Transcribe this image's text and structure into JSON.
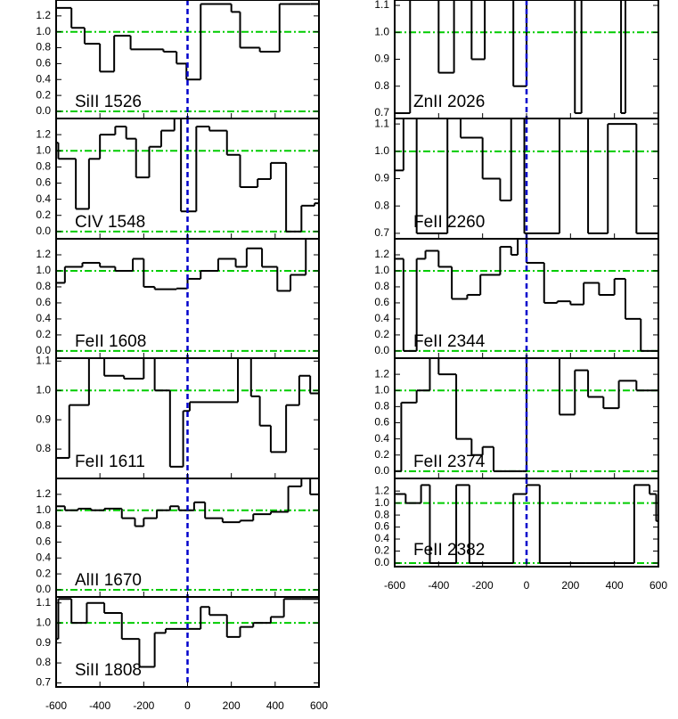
{
  "chart_data": [
    {
      "type": "step",
      "label": "SiII 1526",
      "ylim": [
        -0.09,
        1.4
      ],
      "yticks": [
        {
          "value": 0,
          "label": "0.0"
        },
        {
          "value": 0.2,
          "label": "0.2"
        },
        {
          "value": 0.4,
          "label": "0.4"
        },
        {
          "value": 0.6,
          "label": "0.6"
        },
        {
          "value": 0.8,
          "label": "0.8"
        },
        {
          "value": 1,
          "label": "1.0"
        },
        {
          "value": 1.2,
          "label": "1.2"
        }
      ],
      "x": [
        -600,
        -530,
        -470,
        -400,
        -335,
        -260,
        -110,
        -50,
        -5,
        60,
        200,
        240,
        330,
        420,
        560
      ],
      "values": [
        1.3,
        1.05,
        0.85,
        0.5,
        0.95,
        0.78,
        0.75,
        0.6,
        0.4,
        1.35,
        1.25,
        0.8,
        0.75,
        1.35,
        1.35
      ]
    },
    {
      "type": "step",
      "label": "CIV 1548",
      "ylim": [
        -0.09,
        1.4
      ],
      "yticks": [
        {
          "value": 0,
          "label": "0.0"
        },
        {
          "value": 0.2,
          "label": "0.2"
        },
        {
          "value": 0.4,
          "label": "0.4"
        },
        {
          "value": 0.6,
          "label": "0.6"
        },
        {
          "value": 0.8,
          "label": "0.8"
        },
        {
          "value": 1,
          "label": "1.0"
        },
        {
          "value": 1.2,
          "label": "1.2"
        }
      ],
      "x": [
        -600,
        -590,
        -510,
        -450,
        -400,
        -330,
        -280,
        -235,
        -175,
        -120,
        -60,
        -30,
        40,
        100,
        180,
        240,
        320,
        380,
        450,
        520,
        580
      ],
      "values": [
        1.1,
        0.9,
        0.28,
        0.9,
        1.2,
        1.3,
        1.15,
        0.67,
        1.05,
        1.25,
        1.4,
        0.25,
        1.3,
        1.25,
        0.95,
        0.55,
        0.65,
        0.85,
        0.0,
        0.32,
        0.35
      ]
    },
    {
      "type": "step",
      "label": "FeII 1608",
      "ylim": [
        -0.09,
        1.4
      ],
      "yticks": [
        {
          "value": 0,
          "label": "0.0"
        },
        {
          "value": 0.2,
          "label": "0.2"
        },
        {
          "value": 0.4,
          "label": "0.4"
        },
        {
          "value": 0.6,
          "label": "0.6"
        },
        {
          "value": 0.8,
          "label": "0.8"
        },
        {
          "value": 1,
          "label": "1.0"
        },
        {
          "value": 1.2,
          "label": "1.2"
        }
      ],
      "x": [
        -600,
        -560,
        -480,
        -400,
        -330,
        -250,
        -200,
        -150,
        -50,
        0,
        60,
        140,
        220,
        270,
        340,
        410,
        470,
        540
      ],
      "values": [
        0.85,
        1.05,
        1.1,
        1.05,
        1.0,
        1.15,
        0.8,
        0.77,
        0.78,
        0.9,
        1.0,
        1.15,
        1.05,
        1.28,
        1.05,
        0.75,
        0.95,
        1.4
      ]
    },
    {
      "type": "step",
      "label": "FeII 1611",
      "ylim": [
        0.7,
        1.11
      ],
      "yticks": [
        0.8,
        0.9,
        {
          "value": 1,
          "label": "1.0"
        },
        1.1
      ],
      "x": [
        -600,
        -540,
        -450,
        -380,
        -290,
        -200,
        -150,
        -80,
        -20,
        10,
        230,
        290,
        330,
        380,
        450,
        510,
        560
      ],
      "values": [
        0.77,
        0.95,
        1.12,
        1.05,
        1.04,
        1.12,
        1.0,
        0.74,
        0.93,
        0.96,
        1.12,
        0.98,
        0.88,
        0.79,
        0.95,
        1.05,
        0.99
      ]
    },
    {
      "type": "step",
      "label": "AlII 1670",
      "ylim": [
        -0.09,
        1.4
      ],
      "yticks": [
        {
          "value": 0,
          "label": "0.0"
        },
        {
          "value": 0.2,
          "label": "0.2"
        },
        {
          "value": 0.4,
          "label": "0.4"
        },
        {
          "value": 0.6,
          "label": "0.6"
        },
        {
          "value": 0.8,
          "label": "0.8"
        },
        {
          "value": 1,
          "label": "1.0"
        },
        {
          "value": 1.2,
          "label": "1.2"
        }
      ],
      "x": [
        -600,
        -560,
        -500,
        -440,
        -380,
        -300,
        -240,
        -200,
        -140,
        -80,
        -40,
        30,
        80,
        160,
        240,
        300,
        380,
        460,
        520,
        560
      ],
      "values": [
        1.05,
        1.0,
        1.02,
        1.0,
        1.02,
        0.9,
        0.8,
        0.9,
        1.0,
        1.05,
        1.0,
        1.1,
        0.9,
        0.85,
        0.87,
        0.95,
        0.98,
        1.3,
        1.4,
        1.2
      ]
    },
    {
      "type": "step",
      "label": "SiII 1808",
      "ylim": [
        0.68,
        1.13
      ],
      "yticks": [
        0.7,
        0.8,
        0.9,
        {
          "value": 1,
          "label": "1.0"
        },
        1.1
      ],
      "x": [
        -600,
        -590,
        -530,
        -460,
        -380,
        -300,
        -220,
        -150,
        -100,
        60,
        100,
        180,
        240,
        300,
        380,
        440,
        520
      ],
      "values": [
        0.92,
        1.12,
        1.0,
        1.1,
        1.05,
        0.92,
        0.78,
        0.95,
        0.97,
        1.08,
        1.04,
        0.93,
        0.98,
        1.0,
        1.03,
        1.12,
        1.12
      ]
    },
    {
      "type": "step",
      "label": "ZnII 2026",
      "ylim": [
        0.68,
        1.12
      ],
      "yticks": [
        0.7,
        0.8,
        0.9,
        {
          "value": 1,
          "label": "1.0"
        },
        1.1
      ],
      "x": [
        -600,
        -530,
        -400,
        -330,
        -250,
        -190,
        -60,
        0,
        220,
        250,
        430,
        450
      ],
      "values": [
        0.7,
        1.12,
        0.85,
        1.12,
        0.9,
        1.12,
        0.8,
        1.12,
        0.7,
        1.12,
        0.7,
        1.12
      ]
    },
    {
      "type": "step",
      "label": "FeII 2260",
      "ylim": [
        0.68,
        1.12
      ],
      "yticks": [
        0.7,
        0.8,
        0.9,
        {
          "value": 1,
          "label": "1.0"
        },
        1.1
      ],
      "x": [
        -600,
        -560,
        -500,
        -360,
        -300,
        -200,
        -120,
        -70,
        -10,
        150,
        280,
        370,
        500
      ],
      "values": [
        0.93,
        1.12,
        0.7,
        1.12,
        1.05,
        0.9,
        0.82,
        1.12,
        0.7,
        1.12,
        0.7,
        1.1,
        0.7
      ]
    },
    {
      "type": "step",
      "label": "FeII 2344",
      "ylim": [
        -0.09,
        1.4
      ],
      "yticks": [
        {
          "value": 0,
          "label": "0.0"
        },
        {
          "value": 0.2,
          "label": "0.2"
        },
        {
          "value": 0.4,
          "label": "0.4"
        },
        {
          "value": 0.6,
          "label": "0.6"
        },
        {
          "value": 0.8,
          "label": "0.8"
        },
        {
          "value": 1,
          "label": "1.0"
        },
        {
          "value": 1.2,
          "label": "1.2"
        }
      ],
      "x": [
        -600,
        -560,
        -500,
        -460,
        -400,
        -340,
        -270,
        -210,
        -120,
        -70,
        -40,
        0,
        80,
        140,
        200,
        260,
        330,
        400,
        450,
        520
      ],
      "values": [
        1.15,
        0.0,
        1.15,
        1.25,
        1.05,
        0.65,
        0.7,
        0.95,
        1.3,
        1.2,
        1.4,
        1.1,
        0.6,
        0.62,
        0.58,
        0.85,
        0.7,
        0.9,
        0.4,
        0.0
      ]
    },
    {
      "type": "step",
      "label": "FeII 2374",
      "ylim": [
        -0.09,
        1.4
      ],
      "yticks": [
        {
          "value": 0,
          "label": "0.0"
        },
        {
          "value": 0.2,
          "label": "0.2"
        },
        {
          "value": 0.4,
          "label": "0.4"
        },
        {
          "value": 0.6,
          "label": "0.6"
        },
        {
          "value": 0.8,
          "label": "0.8"
        },
        {
          "value": 1,
          "label": "1.0"
        },
        {
          "value": 1.2,
          "label": "1.2"
        }
      ],
      "x": [
        -600,
        -570,
        -500,
        -440,
        -400,
        -320,
        -250,
        -200,
        -150,
        -20,
        0,
        150,
        220,
        280,
        350,
        420,
        500
      ],
      "values": [
        0.0,
        0.85,
        1.0,
        1.4,
        1.2,
        0.4,
        0.2,
        0.3,
        0.0,
        0.0,
        1.4,
        0.7,
        1.25,
        0.92,
        0.78,
        1.12,
        1.0
      ]
    },
    {
      "type": "step",
      "label": "FeII 2382",
      "ylim": [
        -0.06,
        1.41
      ],
      "yticks": [
        {
          "value": 0,
          "label": "0.0"
        },
        {
          "value": 0.2,
          "label": "0.2"
        },
        {
          "value": 0.4,
          "label": "0.4"
        },
        {
          "value": 0.6,
          "label": "0.6"
        },
        {
          "value": 0.8,
          "label": "0.8"
        },
        {
          "value": 1,
          "label": "1.0"
        },
        {
          "value": 1.2,
          "label": "1.2"
        }
      ],
      "x": [
        -600,
        -550,
        -480,
        -440,
        -320,
        -260,
        -60,
        0,
        60,
        270,
        490,
        560,
        590
      ],
      "values": [
        1.15,
        1.0,
        1.3,
        0.0,
        1.3,
        0.0,
        1.15,
        1.3,
        0.0,
        0.0,
        1.3,
        1.15,
        0.7
      ]
    }
  ],
  "xlim": [
    -600,
    600
  ],
  "xticks": [
    -600,
    -400,
    -200,
    0,
    200,
    400,
    600
  ],
  "hlines": [
    0,
    1
  ],
  "vline": 0,
  "line_color": "#000000",
  "hline_color": "#00cc00",
  "vline_color": "#0000cc"
}
